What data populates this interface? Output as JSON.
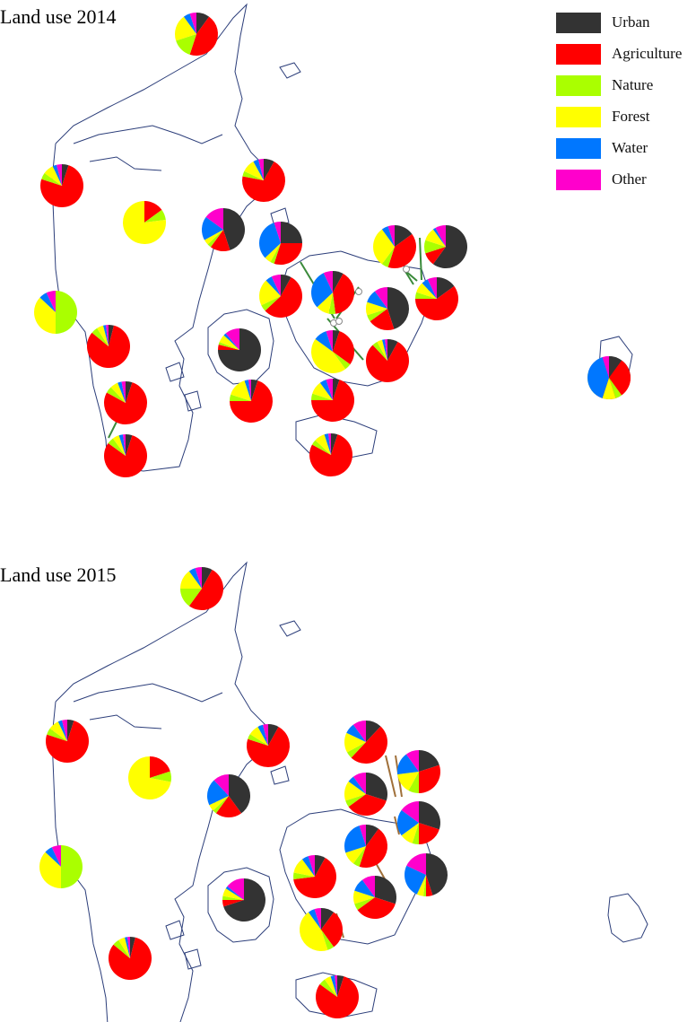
{
  "legend": {
    "items": [
      {
        "label": "Urban",
        "color": "#333333"
      },
      {
        "label": "Agriculture",
        "color": "#ff0000"
      },
      {
        "label": "Nature",
        "color": "#aaff00"
      },
      {
        "label": "Forest",
        "color": "#ffff00"
      },
      {
        "label": "Water",
        "color": "#0077ff"
      },
      {
        "label": "Other",
        "color": "#ff00cc"
      }
    ]
  },
  "colors": {
    "coastline": "#2c3e7a",
    "leader_2014": "#3a8a3a",
    "leader_2015": "#a0703a"
  },
  "panels": [
    {
      "title": "Land use 2014",
      "charts": [
        {
          "name": "skagen",
          "values": [
            10,
            45,
            15,
            20,
            5,
            5
          ]
        },
        {
          "name": "nw-coast",
          "values": [
            5,
            75,
            5,
            8,
            3,
            4
          ]
        },
        {
          "name": "west-forest",
          "values": [
            0,
            15,
            8,
            77,
            0,
            0
          ]
        },
        {
          "name": "aarhus-north",
          "values": [
            8,
            70,
            4,
            10,
            4,
            4
          ]
        },
        {
          "name": "aarhus",
          "values": [
            45,
            15,
            3,
            4,
            18,
            15
          ]
        },
        {
          "name": "west-nature",
          "values": [
            0,
            0,
            50,
            37,
            6,
            7
          ]
        },
        {
          "name": "ringkobing",
          "values": [
            4,
            82,
            5,
            5,
            2,
            2
          ]
        },
        {
          "name": "esbjerg-north",
          "values": [
            5,
            78,
            5,
            6,
            3,
            3
          ]
        },
        {
          "name": "esbjerg-south",
          "values": [
            5,
            80,
            5,
            5,
            3,
            2
          ]
        },
        {
          "name": "odense",
          "values": [
            75,
            4,
            2,
            6,
            2,
            11
          ]
        },
        {
          "name": "vejle",
          "values": [
            5,
            70,
            5,
            15,
            3,
            2
          ]
        },
        {
          "name": "sams",
          "values": [
            25,
            30,
            3,
            5,
            32,
            5
          ]
        },
        {
          "name": "kalundborg",
          "values": [
            8,
            55,
            5,
            20,
            5,
            7
          ]
        },
        {
          "name": "holbaek",
          "values": [
            8,
            40,
            5,
            10,
            30,
            7
          ]
        },
        {
          "name": "zealand-c",
          "values": [
            5,
            30,
            5,
            45,
            10,
            5
          ]
        },
        {
          "name": "slagelse",
          "values": [
            5,
            70,
            5,
            10,
            5,
            5
          ]
        },
        {
          "name": "naestved",
          "values": [
            5,
            78,
            4,
            8,
            3,
            2
          ]
        },
        {
          "name": "lolland",
          "values": [
            8,
            80,
            4,
            4,
            2,
            2
          ]
        },
        {
          "name": "helsinge",
          "values": [
            15,
            40,
            5,
            30,
            5,
            5
          ]
        },
        {
          "name": "roskilde",
          "values": [
            45,
            20,
            5,
            10,
            10,
            10
          ]
        },
        {
          "name": "koege",
          "values": [
            15,
            60,
            5,
            8,
            5,
            7
          ]
        },
        {
          "name": "north-cph",
          "values": [
            60,
            10,
            10,
            10,
            2,
            8
          ]
        },
        {
          "name": "copenhagen",
          "values": [
            25,
            35,
            5,
            15,
            15,
            5
          ]
        },
        {
          "name": "bornholm",
          "values": [
            10,
            30,
            5,
            10,
            40,
            5
          ]
        }
      ]
    },
    {
      "title": "Land use 2015",
      "charts": [
        {
          "name": "skagen",
          "values": [
            8,
            52,
            15,
            15,
            5,
            5
          ]
        },
        {
          "name": "nw-coast",
          "values": [
            5,
            75,
            5,
            8,
            3,
            4
          ]
        },
        {
          "name": "west-forest",
          "values": [
            0,
            20,
            8,
            72,
            0,
            0
          ]
        },
        {
          "name": "aarhus-north",
          "values": [
            8,
            72,
            4,
            8,
            4,
            4
          ]
        },
        {
          "name": "aarhus",
          "values": [
            40,
            20,
            3,
            5,
            20,
            12
          ]
        },
        {
          "name": "west-nature",
          "values": [
            0,
            0,
            50,
            37,
            6,
            7
          ]
        },
        {
          "name": "ringkobing",
          "values": [
            4,
            82,
            5,
            5,
            2,
            2
          ]
        },
        {
          "name": "odense",
          "values": [
            70,
            5,
            3,
            6,
            2,
            14
          ]
        },
        {
          "name": "vejle",
          "values": [
            8,
            65,
            5,
            12,
            5,
            5
          ]
        },
        {
          "name": "kalundborg",
          "values": [
            10,
            30,
            5,
            45,
            5,
            5
          ]
        },
        {
          "name": "lolland",
          "values": [
            5,
            80,
            5,
            5,
            3,
            2
          ]
        },
        {
          "name": "helsinge",
          "values": [
            12,
            50,
            5,
            15,
            8,
            10
          ]
        },
        {
          "name": "holbaek",
          "values": [
            30,
            35,
            5,
            15,
            5,
            10
          ]
        },
        {
          "name": "zealand-c",
          "values": [
            10,
            45,
            5,
            10,
            25,
            5
          ]
        },
        {
          "name": "slagelse",
          "values": [
            30,
            35,
            5,
            10,
            10,
            10
          ]
        },
        {
          "name": "roskilde",
          "values": [
            20,
            30,
            8,
            15,
            17,
            10
          ]
        },
        {
          "name": "koege",
          "values": [
            30,
            20,
            5,
            10,
            20,
            15
          ]
        },
        {
          "name": "copenhagen",
          "values": [
            45,
            5,
            2,
            5,
            25,
            18
          ]
        }
      ]
    }
  ]
}
